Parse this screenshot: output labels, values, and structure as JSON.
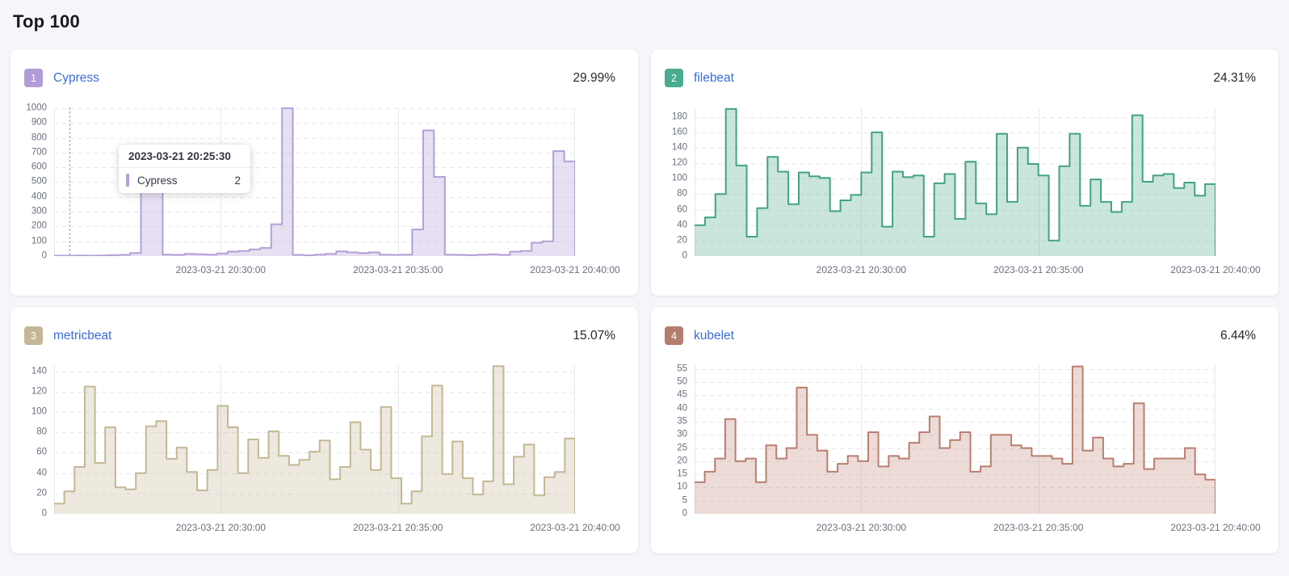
{
  "page": {
    "title": "Top 100",
    "background_color": "#f5f6f9",
    "link_color": "#3a6ed5",
    "axis_label_color": "#69707d"
  },
  "chart_data": [
    {
      "type": "area",
      "step": true,
      "rank": "1",
      "title": "Cypress",
      "percentage": "29.99%",
      "badge_color": "#b19cd7",
      "line_color": "#b3a0d6",
      "fill_color": "rgba(179,160,214,0.32)",
      "ylim": [
        0,
        1005
      ],
      "y_ticks": [
        0,
        100,
        200,
        300,
        400,
        500,
        600,
        700,
        800,
        900,
        1000
      ],
      "x_tick_labels": [
        "2023-03-21 20:30:00",
        "2023-03-21 20:35:00",
        "2023-03-21 20:40:00"
      ],
      "x_tick_positions": [
        0.32,
        0.66,
        1
      ],
      "values": [
        3,
        3,
        4,
        3,
        4,
        6,
        8,
        20,
        500,
        460,
        10,
        8,
        15,
        12,
        10,
        18,
        30,
        35,
        45,
        55,
        215,
        1000,
        8,
        5,
        10,
        15,
        32,
        25,
        20,
        25,
        10,
        8,
        10,
        180,
        850,
        535,
        10,
        8,
        6,
        10,
        12,
        8,
        30,
        35,
        90,
        100,
        710,
        640
      ],
      "crosshair_position": 0.03,
      "tooltip": {
        "time": "2023-03-21 20:25:30",
        "series": "Cypress",
        "value": "2"
      }
    },
    {
      "type": "area",
      "step": true,
      "rank": "2",
      "title": "filebeat",
      "percentage": "24.31%",
      "badge_color": "#49ab8f",
      "line_color": "#42a383",
      "fill_color": "rgba(66,163,131,0.28)",
      "ylim": [
        0,
        192
      ],
      "y_ticks": [
        0,
        20,
        40,
        60,
        80,
        100,
        120,
        140,
        160,
        180
      ],
      "x_tick_labels": [
        "2023-03-21 20:30:00",
        "2023-03-21 20:35:00",
        "2023-03-21 20:40:00"
      ],
      "x_tick_positions": [
        0.32,
        0.66,
        1
      ],
      "values": [
        40,
        50,
        80,
        190,
        117,
        25,
        62,
        128,
        109,
        67,
        108,
        103,
        101,
        58,
        72,
        79,
        108,
        160,
        38,
        109,
        102,
        104,
        25,
        94,
        106,
        48,
        122,
        68,
        54,
        158,
        70,
        140,
        119,
        104,
        20,
        116,
        158,
        65,
        99,
        70,
        57,
        70,
        182,
        96,
        104,
        106,
        88,
        95,
        78,
        93
      ]
    },
    {
      "type": "area",
      "step": true,
      "rank": "3",
      "title": "metricbeat",
      "percentage": "15.07%",
      "badge_color": "#c4b795",
      "line_color": "#c3b794",
      "fill_color": "rgba(195,183,148,0.30)",
      "ylim": [
        0,
        146
      ],
      "y_ticks": [
        0,
        20,
        40,
        60,
        80,
        100,
        120,
        140
      ],
      "x_tick_labels": [
        "2023-03-21 20:30:00",
        "2023-03-21 20:35:00",
        "2023-03-21 20:40:00"
      ],
      "x_tick_positions": [
        0.32,
        0.66,
        1
      ],
      "values": [
        10,
        22,
        46,
        125,
        50,
        85,
        26,
        24,
        40,
        86,
        91,
        54,
        65,
        41,
        23,
        43,
        106,
        85,
        40,
        73,
        55,
        81,
        57,
        48,
        53,
        61,
        72,
        34,
        46,
        90,
        63,
        43,
        105,
        35,
        10,
        22,
        76,
        126,
        39,
        71,
        35,
        19,
        32,
        145,
        29,
        56,
        68,
        18,
        36,
        41,
        74
      ]
    },
    {
      "type": "area",
      "step": true,
      "rank": "4",
      "title": "kubelet",
      "percentage": "6.44%",
      "badge_color": "#b67d6e",
      "line_color": "#b97e6f",
      "fill_color": "rgba(185,126,111,0.28)",
      "ylim": [
        0,
        56.5
      ],
      "y_ticks": [
        0,
        5,
        10,
        15,
        20,
        25,
        30,
        35,
        40,
        45,
        50,
        55
      ],
      "x_tick_labels": [
        "2023-03-21 20:30:00",
        "2023-03-21 20:35:00",
        "2023-03-21 20:40:00"
      ],
      "x_tick_positions": [
        0.32,
        0.66,
        1
      ],
      "values": [
        12,
        16,
        21,
        36,
        20,
        21,
        12,
        26,
        21,
        25,
        48,
        30,
        24,
        16,
        19,
        22,
        20,
        31,
        18,
        22,
        21,
        27,
        31,
        37,
        25,
        28,
        31,
        16,
        18,
        30,
        30,
        26,
        25,
        22,
        22,
        21,
        19,
        56,
        24,
        29,
        21,
        18,
        19,
        42,
        17,
        21,
        21,
        21,
        25,
        15,
        13
      ]
    }
  ],
  "style": {
    "h_gridline_color": "#e6e6f0",
    "v_gridline_color": "#e7e8f1",
    "axis_line_color": "#e7e8f1"
  }
}
